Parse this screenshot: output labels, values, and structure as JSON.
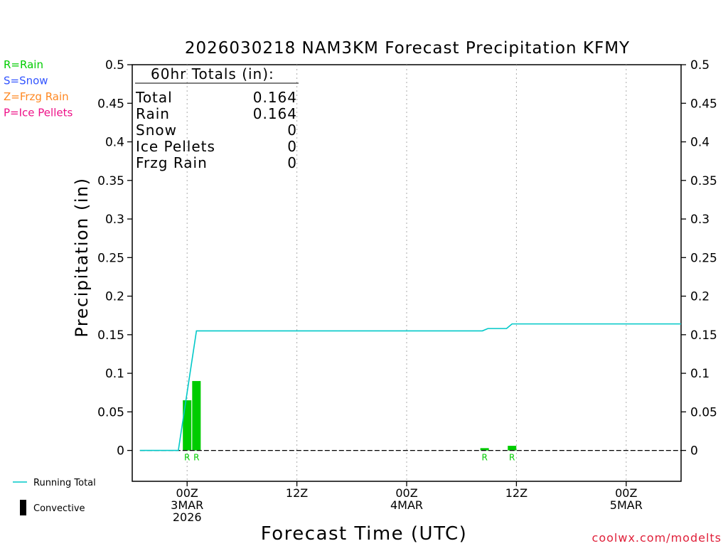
{
  "chart_data": {
    "type": "bar",
    "title": "2026030218 NAM3KM Forecast Precipitation KFMY",
    "xlabel": "Forecast Time (UTC)",
    "ylabel": "Precipitation (in)",
    "ylim": [
      -0.04,
      0.5
    ],
    "xlim": [
      -5,
      45
    ],
    "y_ticks": [
      0,
      0.05,
      0.1,
      0.15,
      0.2,
      0.25,
      0.3,
      0.35,
      0.4,
      0.45,
      0.5
    ],
    "y_tick_labels": [
      "0",
      "0.05",
      "0.1",
      "0.15",
      "0.2",
      "0.25",
      "0.3",
      "0.35",
      "0.4",
      "0.45",
      "0.5"
    ],
    "x_ticks": [
      {
        "hour": 0,
        "lines": [
          "00Z",
          "3MAR",
          "2026"
        ]
      },
      {
        "hour": 10,
        "lines": [
          "12Z"
        ]
      },
      {
        "hour": 20,
        "lines": [
          "00Z",
          "4MAR"
        ]
      },
      {
        "hour": 30,
        "lines": [
          "12Z"
        ]
      },
      {
        "hour": 40,
        "lines": [
          "00Z",
          "5MAR"
        ]
      }
    ],
    "bars": [
      {
        "x": 0,
        "value": 0.065,
        "type": "R",
        "convective": false
      },
      {
        "x": 0.85,
        "value": 0.09,
        "type": "R",
        "convective": false
      },
      {
        "x": 27.1,
        "value": 0.003,
        "type": "R",
        "convective": false
      },
      {
        "x": 29.6,
        "value": 0.006,
        "type": "R",
        "convective": false
      }
    ],
    "running_total": {
      "x": [
        -4.3,
        -0.8,
        0.85,
        26.9,
        27.4,
        29.1,
        29.6,
        45
      ],
      "y": [
        0,
        0,
        0.155,
        0.155,
        0.158,
        0.158,
        0.164,
        0.164
      ]
    },
    "totals_box": {
      "heading": "60hr Totals (in):",
      "rows": [
        {
          "label": "Total",
          "value": "0.164"
        },
        {
          "label": "Rain",
          "value": "0.164"
        },
        {
          "label": "Snow",
          "value": "0"
        },
        {
          "label": "Ice Pellets",
          "value": "0"
        },
        {
          "label": "Frzg Rain",
          "value": "0"
        }
      ]
    },
    "precip_type_legend": [
      {
        "text": "R=Rain",
        "color": "#00cc00"
      },
      {
        "text": "S=Snow",
        "color": "#3355ff"
      },
      {
        "text": "Z=Frzg Rain",
        "color": "#ff8822"
      },
      {
        "text": "P=Ice Pellets",
        "color": "#ee1188"
      }
    ],
    "series_legend": [
      {
        "name": "Running Total",
        "color": "#00c8c8",
        "kind": "line"
      },
      {
        "name": "Convective",
        "color": "#000000",
        "kind": "bar"
      }
    ],
    "colors": {
      "rain": "#00cc00",
      "running_total": "#00c8c8",
      "grid": "#aaaaaa",
      "credit": "#e0203a"
    },
    "credit": "coolwx.com/modelts"
  }
}
